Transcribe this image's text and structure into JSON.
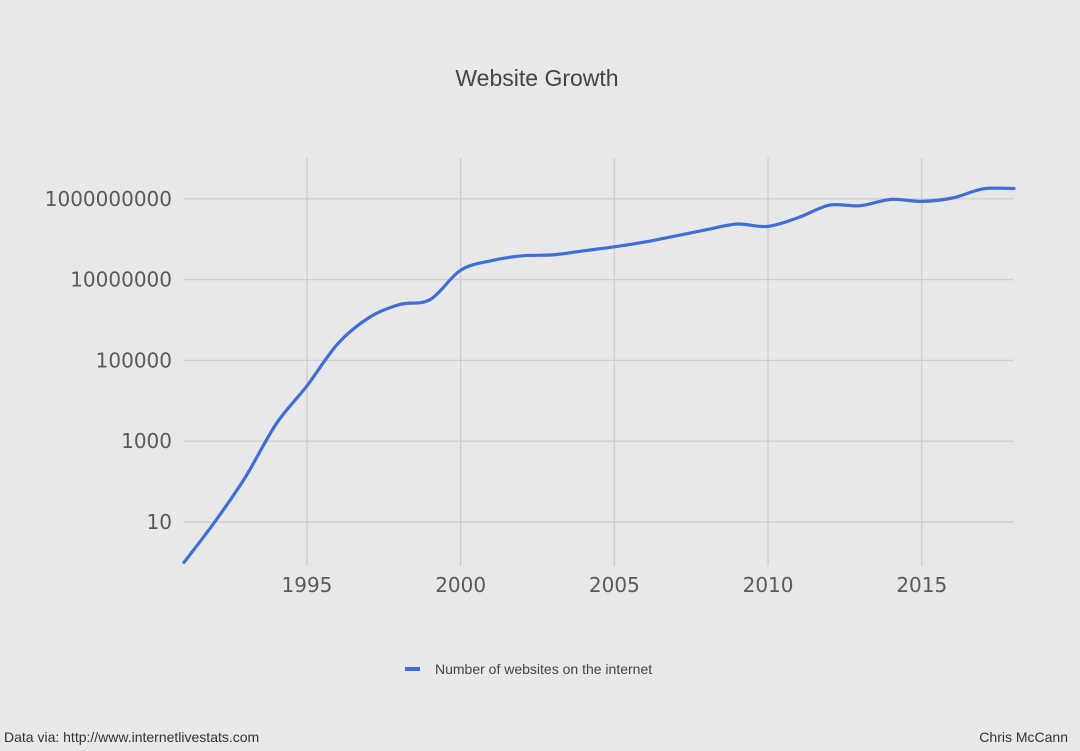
{
  "chart_data": {
    "type": "line",
    "title": "Website Growth",
    "xlabel": "",
    "ylabel": "",
    "y_scale": "log",
    "xlim": [
      1991,
      2018
    ],
    "ylim": [
      1,
      10000000000
    ],
    "x_ticks": [
      1995,
      2000,
      2005,
      2010,
      2015
    ],
    "y_ticks": [
      10,
      1000,
      100000,
      10000000,
      1000000000
    ],
    "y_tick_labels": [
      "10",
      "1000",
      "100000",
      "10000000",
      "1000000000"
    ],
    "grid": true,
    "legend_position": "bottom",
    "line_color": "#3f6fd6",
    "series": [
      {
        "name": "Number of websites on the internet",
        "x": [
          1991,
          1992,
          1993,
          1994,
          1995,
          1996,
          1997,
          1998,
          1999,
          2000,
          2001,
          2002,
          2003,
          2004,
          2005,
          2006,
          2007,
          2008,
          2009,
          2010,
          2011,
          2012,
          2013,
          2014,
          2015,
          2016,
          2017,
          2018
        ],
        "y": [
          1,
          10,
          130,
          2700,
          23500,
          257000,
          1120000,
          2410000,
          3180000,
          17100000,
          29300000,
          38800000,
          40900000,
          51600000,
          64800000,
          85500000,
          121000000,
          172000000,
          238000000,
          207000000,
          347000000,
          697000000,
          673000000,
          968000000,
          863000000,
          1045000000,
          1767000000,
          1800000000
        ]
      }
    ]
  },
  "footer": {
    "source": "Data via: http://www.internetlivestats.com",
    "author": "Chris McCann"
  }
}
